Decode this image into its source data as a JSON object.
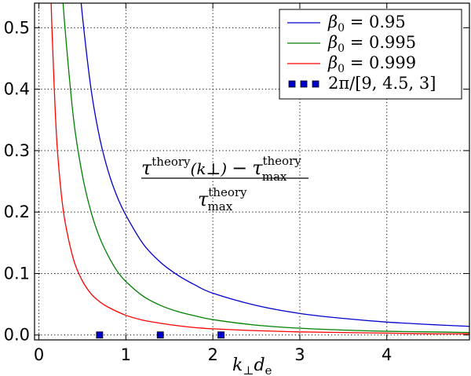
{
  "chart_data": {
    "type": "line",
    "xlabel": "k⊥de",
    "xlabel_parts": {
      "k": "k",
      "perp": "⊥",
      "d": "d",
      "e": "e"
    },
    "ylabel": "",
    "xlim": [
      -0.05,
      4.95
    ],
    "ylim": [
      -0.008,
      0.54
    ],
    "xticks": [
      0,
      1,
      2,
      3,
      4
    ],
    "xtick_labels": [
      "0",
      "1",
      "2",
      "3",
      "4"
    ],
    "yticks": [
      0.0,
      0.1,
      0.2,
      0.3,
      0.4,
      0.5
    ],
    "ytick_labels": [
      "0.0",
      "0.1",
      "0.2",
      "0.3",
      "0.4",
      "0.5"
    ],
    "grid": true,
    "legend_position": "top-right",
    "annotation": {
      "tau": "τ",
      "theory": "theory",
      "max": "max",
      "kperp": "(k⊥)",
      "minus": "−"
    },
    "series": [
      {
        "legend_beta": "β",
        "legend_sub": "0",
        "legend_value": " = 0.95",
        "color": "#0000cc",
        "x": [
          0.45,
          0.5,
          0.6,
          0.7,
          0.8,
          0.9,
          1.0,
          1.2,
          1.4,
          1.6,
          1.8,
          2.0,
          2.5,
          3.0,
          3.5,
          4.0,
          4.5,
          4.95
        ],
        "y": [
          0.6,
          0.52,
          0.4,
          0.32,
          0.265,
          0.225,
          0.195,
          0.148,
          0.118,
          0.097,
          0.081,
          0.068,
          0.048,
          0.035,
          0.027,
          0.021,
          0.017,
          0.014
        ]
      },
      {
        "legend_beta": "β",
        "legend_sub": "0",
        "legend_value": " = 0.995",
        "color": "#008000",
        "x": [
          0.25,
          0.3,
          0.4,
          0.5,
          0.6,
          0.7,
          0.8,
          0.9,
          1.0,
          1.2,
          1.4,
          1.6,
          1.8,
          2.0,
          2.5,
          3.0,
          3.5,
          4.0,
          4.5,
          4.95
        ],
        "y": [
          0.6,
          0.5,
          0.35,
          0.26,
          0.2,
          0.158,
          0.128,
          0.104,
          0.087,
          0.063,
          0.048,
          0.038,
          0.031,
          0.025,
          0.016,
          0.011,
          0.008,
          0.006,
          0.005,
          0.004
        ]
      },
      {
        "legend_beta": "β",
        "legend_sub": "0",
        "legend_value": " = 0.999",
        "color": "#ff0000",
        "x": [
          0.13,
          0.15,
          0.2,
          0.25,
          0.3,
          0.4,
          0.5,
          0.6,
          0.7,
          0.8,
          1.0,
          1.2,
          1.4,
          1.6,
          1.8,
          2.0,
          2.5,
          3.0,
          3.5,
          4.0,
          4.5,
          4.95
        ],
        "y": [
          0.6,
          0.5,
          0.33,
          0.24,
          0.185,
          0.122,
          0.088,
          0.067,
          0.054,
          0.045,
          0.032,
          0.024,
          0.019,
          0.015,
          0.012,
          0.01,
          0.007,
          0.005,
          0.004,
          0.003,
          0.002,
          0.002
        ]
      }
    ],
    "markers": {
      "legend_label": "2π/[9, 4.5, 3]",
      "color": "#0000cc",
      "x": [
        0.698,
        1.396,
        2.094
      ],
      "y": [
        0.0,
        0.0,
        0.0
      ]
    }
  }
}
